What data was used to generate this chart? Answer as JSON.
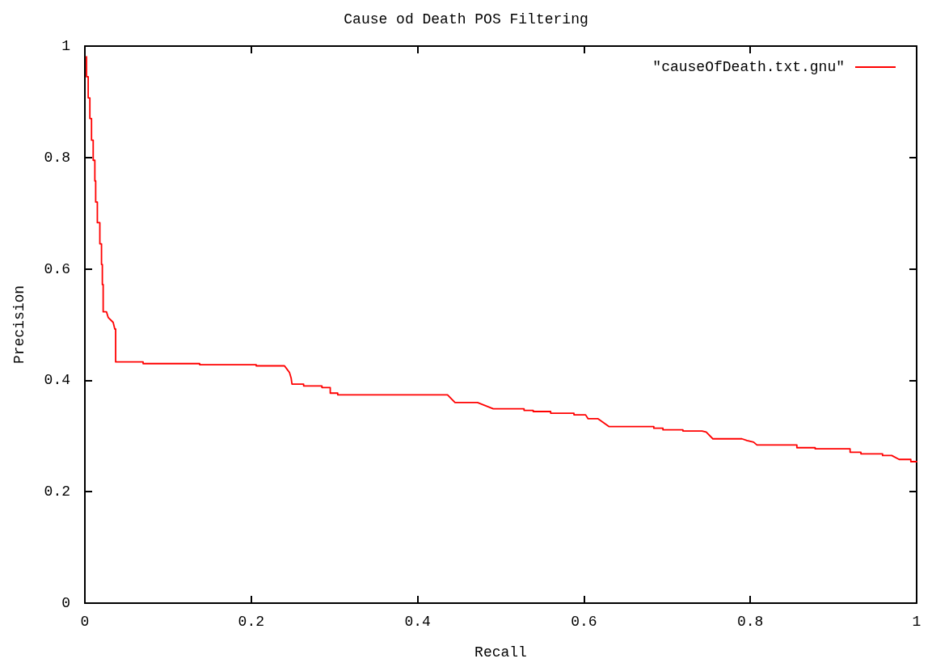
{
  "chart_data": {
    "type": "line",
    "title": "Cause od Death POS Filtering",
    "xlabel": "Recall",
    "ylabel": "Precision",
    "xlim": [
      0,
      1
    ],
    "xticks": [
      0,
      0.2,
      0.4,
      0.6,
      0.8,
      1
    ],
    "ylim": [
      0,
      1
    ],
    "yticks": [
      0,
      0.2,
      0.4,
      0.6,
      0.8,
      1
    ],
    "legend": "top right",
    "series": [
      {
        "name": "\"causeOfDeath.txt.gnu\"",
        "color": "#ff0000",
        "x": [
          0.002,
          0.002,
          0.004,
          0.004,
          0.006,
          0.006,
          0.008,
          0.008,
          0.01,
          0.01,
          0.012,
          0.012,
          0.013,
          0.013,
          0.015,
          0.015,
          0.018,
          0.018,
          0.02,
          0.02,
          0.021,
          0.021,
          0.022,
          0.022,
          0.026,
          0.028,
          0.034,
          0.036,
          0.037,
          0.037,
          0.07,
          0.07,
          0.138,
          0.138,
          0.206,
          0.206,
          0.24,
          0.243,
          0.246,
          0.248,
          0.249,
          0.263,
          0.263,
          0.285,
          0.285,
          0.295,
          0.295,
          0.304,
          0.304,
          0.436,
          0.445,
          0.472,
          0.491,
          0.528,
          0.528,
          0.539,
          0.539,
          0.56,
          0.56,
          0.588,
          0.588,
          0.602,
          0.605,
          0.617,
          0.63,
          0.684,
          0.684,
          0.695,
          0.695,
          0.719,
          0.719,
          0.742,
          0.747,
          0.755,
          0.79,
          0.796,
          0.804,
          0.808,
          0.856,
          0.856,
          0.878,
          0.878,
          0.92,
          0.92,
          0.933,
          0.933,
          0.959,
          0.959,
          0.97,
          0.979,
          0.993,
          0.993,
          1
        ],
        "values": [
          0.981,
          0.945,
          0.945,
          0.907,
          0.907,
          0.87,
          0.87,
          0.831,
          0.831,
          0.795,
          0.795,
          0.758,
          0.758,
          0.72,
          0.72,
          0.683,
          0.683,
          0.645,
          0.645,
          0.608,
          0.608,
          0.572,
          0.572,
          0.523,
          0.523,
          0.513,
          0.504,
          0.492,
          0.492,
          0.433,
          0.433,
          0.43,
          0.43,
          0.428,
          0.428,
          0.426,
          0.426,
          0.42,
          0.414,
          0.404,
          0.393,
          0.393,
          0.39,
          0.39,
          0.387,
          0.387,
          0.377,
          0.377,
          0.374,
          0.374,
          0.36,
          0.36,
          0.349,
          0.349,
          0.346,
          0.346,
          0.344,
          0.344,
          0.341,
          0.341,
          0.338,
          0.338,
          0.331,
          0.331,
          0.317,
          0.317,
          0.314,
          0.314,
          0.311,
          0.311,
          0.309,
          0.309,
          0.307,
          0.295,
          0.295,
          0.292,
          0.289,
          0.284,
          0.284,
          0.279,
          0.279,
          0.277,
          0.277,
          0.271,
          0.271,
          0.268,
          0.268,
          0.265,
          0.265,
          0.258,
          0.258,
          0.254,
          0.254
        ]
      }
    ]
  }
}
